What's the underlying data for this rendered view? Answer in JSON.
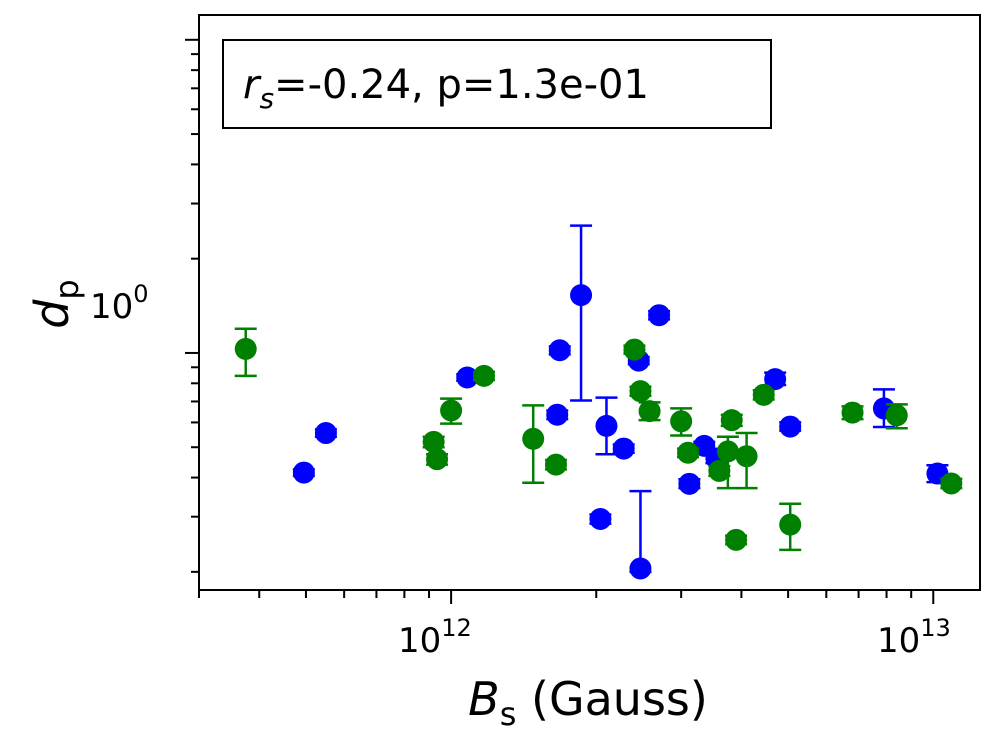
{
  "chart_data": {
    "type": "scatter",
    "xscale": "log",
    "yscale": "log",
    "xlim": [
      300000000000.0,
      12500000000000.0
    ],
    "ylim": [
      0.175,
      12.0
    ],
    "xlabel": {
      "main": "B",
      "sub": "s",
      "suffix": " (Gauss)"
    },
    "ylabel": {
      "main": "d",
      "sub": "p"
    },
    "xticks": [
      {
        "base": "10",
        "exp": "12",
        "value": 1000000000000.0
      },
      {
        "base": "10",
        "exp": "13",
        "value": 10000000000000.0
      }
    ],
    "yticks": [
      {
        "base": "10",
        "exp": "0",
        "value": 1
      }
    ],
    "annotation": {
      "var": "r",
      "sub": "s",
      "text": "=-0.24, p=1.3e-01"
    },
    "series": [
      {
        "color": "#0000ff",
        "points": [
          {
            "x": 495000000000.0,
            "y": 0.415,
            "lo": 0.405,
            "hi": 0.425
          },
          {
            "x": 550000000000.0,
            "y": 0.555,
            "lo": 0.54,
            "hi": 0.57
          },
          {
            "x": 1080000000000.0,
            "y": 0.835,
            "lo": 0.815,
            "hi": 0.855
          },
          {
            "x": 1680000000000.0,
            "y": 1.02,
            "lo": 0.99,
            "hi": 1.05
          },
          {
            "x": 1660000000000.0,
            "y": 0.635,
            "lo": 0.615,
            "hi": 0.655
          },
          {
            "x": 1860000000000.0,
            "y": 1.53,
            "lo": 0.705,
            "hi": 2.55
          },
          {
            "x": 2040000000000.0,
            "y": 0.295,
            "lo": 0.285,
            "hi": 0.305
          },
          {
            "x": 2100000000000.0,
            "y": 0.585,
            "lo": 0.475,
            "hi": 0.72
          },
          {
            "x": 2280000000000.0,
            "y": 0.495,
            "lo": 0.48,
            "hi": 0.51
          },
          {
            "x": 2450000000000.0,
            "y": 0.945,
            "lo": 0.92,
            "hi": 0.97
          },
          {
            "x": 2470000000000.0,
            "y": 0.205,
            "lo": 0.2,
            "hi": 0.362
          },
          {
            "x": 2700000000000.0,
            "y": 1.32,
            "lo": 1.28,
            "hi": 1.36
          },
          {
            "x": 3120000000000.0,
            "y": 0.382,
            "lo": 0.37,
            "hi": 0.395
          },
          {
            "x": 3350000000000.0,
            "y": 0.505,
            "lo": 0.49,
            "hi": 0.52
          },
          {
            "x": 3550000000000.0,
            "y": 0.46,
            "lo": 0.445,
            "hi": 0.475
          },
          {
            "x": 4700000000000.0,
            "y": 0.825,
            "lo": 0.79,
            "hi": 0.865
          },
          {
            "x": 5050000000000.0,
            "y": 0.582,
            "lo": 0.565,
            "hi": 0.6
          },
          {
            "x": 7900000000000.0,
            "y": 0.665,
            "lo": 0.58,
            "hi": 0.765
          },
          {
            "x": 10200000000000.0,
            "y": 0.412,
            "lo": 0.387,
            "hi": 0.438
          }
        ]
      },
      {
        "color": "#008000",
        "points": [
          {
            "x": 375000000000.0,
            "y": 1.03,
            "lo": 0.845,
            "hi": 1.195
          },
          {
            "x": 920000000000.0,
            "y": 0.52,
            "lo": 0.5,
            "hi": 0.54
          },
          {
            "x": 935000000000.0,
            "y": 0.458,
            "lo": 0.44,
            "hi": 0.475
          },
          {
            "x": 1000000000000.0,
            "y": 0.655,
            "lo": 0.595,
            "hi": 0.715
          },
          {
            "x": 1170000000000.0,
            "y": 0.845,
            "lo": 0.82,
            "hi": 0.87
          },
          {
            "x": 1480000000000.0,
            "y": 0.532,
            "lo": 0.385,
            "hi": 0.68
          },
          {
            "x": 1650000000000.0,
            "y": 0.44,
            "lo": 0.425,
            "hi": 0.455
          },
          {
            "x": 2400000000000.0,
            "y": 1.025,
            "lo": 0.995,
            "hi": 1.055
          },
          {
            "x": 2470000000000.0,
            "y": 0.755,
            "lo": 0.73,
            "hi": 0.78
          },
          {
            "x": 2580000000000.0,
            "y": 0.652,
            "lo": 0.61,
            "hi": 0.695
          },
          {
            "x": 3000000000000.0,
            "y": 0.605,
            "lo": 0.545,
            "hi": 0.665
          },
          {
            "x": 3100000000000.0,
            "y": 0.48,
            "lo": 0.465,
            "hi": 0.495
          },
          {
            "x": 3600000000000.0,
            "y": 0.42,
            "lo": 0.405,
            "hi": 0.435
          },
          {
            "x": 3750000000000.0,
            "y": 0.485,
            "lo": 0.37,
            "hi": 0.54
          },
          {
            "x": 3820000000000.0,
            "y": 0.61,
            "lo": 0.585,
            "hi": 0.635
          },
          {
            "x": 3900000000000.0,
            "y": 0.253,
            "lo": 0.245,
            "hi": 0.261
          },
          {
            "x": 4100000000000.0,
            "y": 0.468,
            "lo": 0.37,
            "hi": 0.555
          },
          {
            "x": 4450000000000.0,
            "y": 0.735,
            "lo": 0.71,
            "hi": 0.76
          },
          {
            "x": 5050000000000.0,
            "y": 0.283,
            "lo": 0.235,
            "hi": 0.33
          },
          {
            "x": 6800000000000.0,
            "y": 0.645,
            "lo": 0.615,
            "hi": 0.675
          },
          {
            "x": 8400000000000.0,
            "y": 0.632,
            "lo": 0.575,
            "hi": 0.685
          },
          {
            "x": 10900000000000.0,
            "y": 0.383,
            "lo": 0.37,
            "hi": 0.396
          }
        ]
      }
    ]
  }
}
